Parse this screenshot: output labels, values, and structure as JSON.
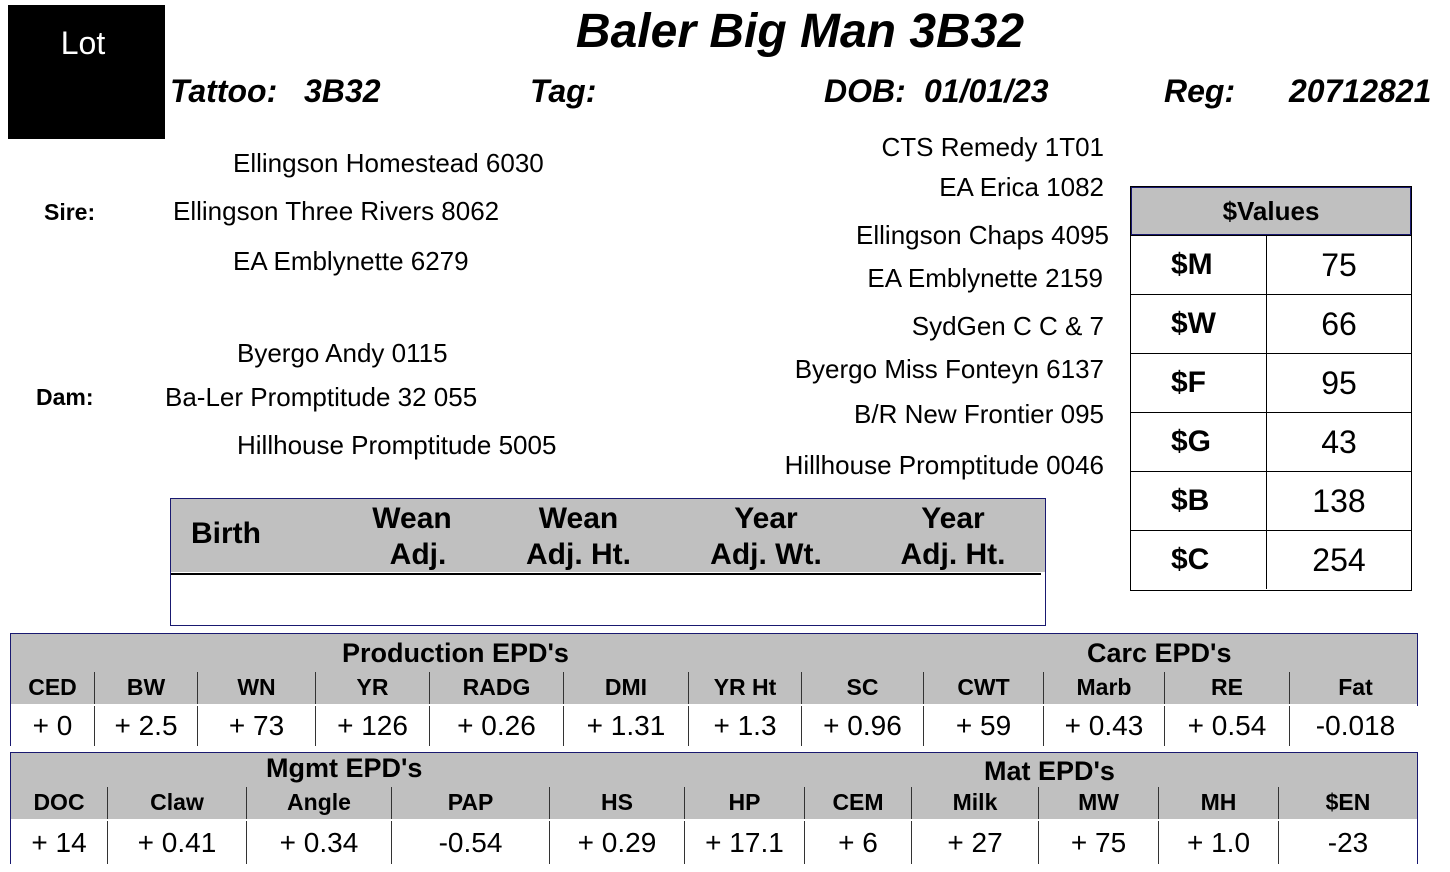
{
  "lot_label": "Lot",
  "animal_name": "Baler Big Man 3B32",
  "header": {
    "tattoo_label": "Tattoo:",
    "tattoo_value": "3B32",
    "tag_label": "Tag:",
    "tag_value": "",
    "dob_label": "DOB:",
    "dob_value": "01/01/23",
    "reg_label": "Reg:",
    "reg_value": "20712821"
  },
  "pedigree": {
    "sire_label": "Sire:",
    "dam_label": "Dam:",
    "sire": "Ellingson Three Rivers 8062",
    "sire_sire": "Ellingson Homestead 6030",
    "sire_dam": "EA Emblynette 6279",
    "dam": "Ba-Ler Promptitude 32 055",
    "dam_sire": "Byergo Andy 0115",
    "dam_dam": "Hillhouse Promptitude 5005",
    "sss": "CTS Remedy 1T01",
    "ssd": "EA Erica 1082",
    "sds": "Ellingson Chaps 4095",
    "sdd": "EA Emblynette 2159",
    "dss": "SydGen C C & 7",
    "dsd": "Byergo Miss Fonteyn 6137",
    "dds": "B/R New Frontier 095",
    "ddd": "Hillhouse Promptitude 0046"
  },
  "values": {
    "title": "$Values",
    "rows": [
      {
        "label": "$M",
        "value": "75"
      },
      {
        "label": "$W",
        "value": "66"
      },
      {
        "label": "$F",
        "value": "95"
      },
      {
        "label": "$G",
        "value": "43"
      },
      {
        "label": "$B",
        "value": "138"
      },
      {
        "label": "$C",
        "value": "254"
      }
    ]
  },
  "performance": {
    "headers": [
      {
        "line1": "Birth",
        "line2": ""
      },
      {
        "line1": "Wean",
        "line2": "Adj."
      },
      {
        "line1": "Wean",
        "line2": "Adj. Ht."
      },
      {
        "line1": "Year",
        "line2": "Adj. Wt."
      },
      {
        "line1": "Year",
        "line2": "Adj. Ht."
      }
    ]
  },
  "production_epds": {
    "section_left": "Production EPD's",
    "section_right": "Carc EPD's",
    "columns": [
      "CED",
      "BW",
      "WN",
      "YR",
      "RADG",
      "DMI",
      "YR Ht",
      "SC",
      "CWT",
      "Marb",
      "RE",
      "Fat"
    ],
    "values": [
      "+ 0",
      "+ 2.5",
      "+ 73",
      "+ 126",
      "+ 0.26",
      "+ 1.31",
      "+ 1.3",
      "+ 0.96",
      "+ 59",
      "+ 0.43",
      "+ 0.54",
      "-0.018"
    ]
  },
  "mgmt_epds": {
    "section_left": "Mgmt EPD's",
    "section_right": "Mat EPD's",
    "columns": [
      "DOC",
      "Claw",
      "Angle",
      "PAP",
      "HS",
      "HP",
      "CEM",
      "Milk",
      "MW",
      "MH",
      "$EN"
    ],
    "values": [
      "+ 14",
      "+ 0.41",
      "+ 0.34",
      "-0.54",
      "+ 0.29",
      "+ 17.1",
      "+ 6",
      "+ 27",
      "+ 75",
      "+ 1.0",
      "-23"
    ]
  }
}
